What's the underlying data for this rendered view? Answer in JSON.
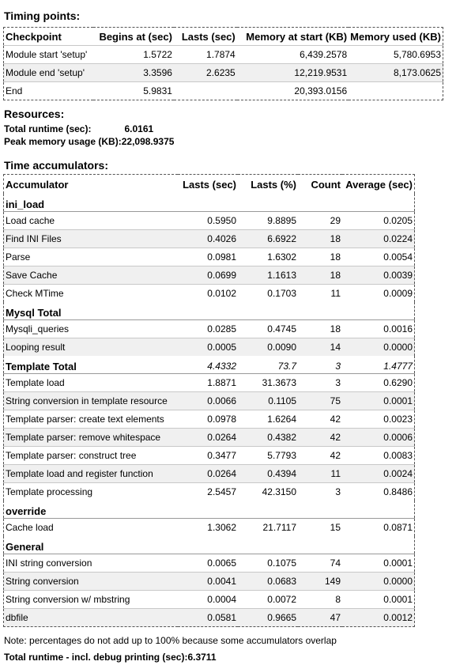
{
  "timing": {
    "heading": "Timing points:",
    "headers": [
      "Checkpoint",
      "Begins at (sec)",
      "Lasts (sec)",
      "Memory at start (KB)",
      "Memory used (KB)"
    ],
    "rows": [
      [
        "Module start 'setup'",
        "1.5722",
        "1.7874",
        "6,439.2578",
        "5,780.6953"
      ],
      [
        "Module end 'setup'",
        "3.3596",
        "2.6235",
        "12,219.9531",
        "8,173.0625"
      ],
      [
        "End",
        "5.9831",
        "",
        "20,393.0156",
        ""
      ]
    ]
  },
  "resources": {
    "heading": "Resources:",
    "runtime_label": "Total runtime (sec):",
    "runtime_value": "6.0161",
    "peak_label": "Peak memory usage (KB):",
    "peak_value": "22,098.9375"
  },
  "accumulators": {
    "heading": "Time accumulators:",
    "headers": [
      "Accumulator",
      "Lasts (sec)",
      "Lasts (%)",
      "Count",
      "Average (sec)"
    ],
    "groups": [
      {
        "name": "ini_load",
        "rows": [
          [
            "Load cache",
            "0.5950",
            "9.8895",
            "29",
            "0.0205"
          ],
          [
            "Find INI Files",
            "0.4026",
            "6.6922",
            "18",
            "0.0224"
          ],
          [
            "Parse",
            "0.0981",
            "1.6302",
            "18",
            "0.0054"
          ],
          [
            "Save Cache",
            "0.0699",
            "1.1613",
            "18",
            "0.0039"
          ],
          [
            "Check MTime",
            "0.0102",
            "0.1703",
            "11",
            "0.0009"
          ]
        ]
      },
      {
        "name": "Mysql Total",
        "rows": [
          [
            "Mysqli_queries",
            "0.0285",
            "0.4745",
            "18",
            "0.0016"
          ],
          [
            "Looping result",
            "0.0005",
            "0.0090",
            "14",
            "0.0000"
          ]
        ]
      },
      {
        "name": "Template Total",
        "total": [
          "4.4332",
          "73.7",
          "3",
          "1.4777"
        ],
        "rows": [
          [
            "Template load",
            "1.8871",
            "31.3673",
            "3",
            "0.6290"
          ],
          [
            "String conversion in template resource",
            "0.0066",
            "0.1105",
            "75",
            "0.0001"
          ],
          [
            "Template parser: create text elements",
            "0.0978",
            "1.6264",
            "42",
            "0.0023"
          ],
          [
            "Template parser: remove whitespace",
            "0.0264",
            "0.4382",
            "42",
            "0.0006"
          ],
          [
            "Template parser: construct tree",
            "0.3477",
            "5.7793",
            "42",
            "0.0083"
          ],
          [
            "Template load and register function",
            "0.0264",
            "0.4394",
            "11",
            "0.0024"
          ],
          [
            "Template processing",
            "2.5457",
            "42.3150",
            "3",
            "0.8486"
          ]
        ]
      },
      {
        "name": "override",
        "rows": [
          [
            "Cache load",
            "1.3062",
            "21.7117",
            "15",
            "0.0871"
          ]
        ]
      },
      {
        "name": "General",
        "rows": [
          [
            "INI string conversion",
            "0.0065",
            "0.1075",
            "74",
            "0.0001"
          ],
          [
            "String conversion",
            "0.0041",
            "0.0683",
            "149",
            "0.0000"
          ],
          [
            "String conversion w/ mbstring",
            "0.0004",
            "0.0072",
            "8",
            "0.0001"
          ],
          [
            "dbfile",
            "0.0581",
            "0.9665",
            "47",
            "0.0012"
          ]
        ]
      }
    ]
  },
  "note": "Note: percentages do not add up to 100% because some accumulators overlap",
  "total_debug": {
    "label": "Total runtime - incl. debug printing (sec):",
    "value": "6.3711"
  }
}
